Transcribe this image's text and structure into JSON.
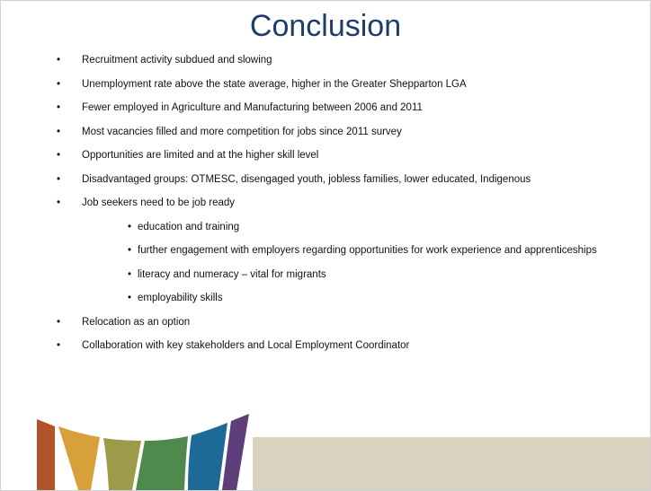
{
  "title": "Conclusion",
  "bullets": [
    "Recruitment activity subdued and slowing",
    "Unemployment rate above the state average, higher in the Greater Shepparton LGA",
    "Fewer employed in Agriculture and Manufacturing between 2006 and 2011",
    "Most vacancies filled and more competition for jobs since 2011 survey",
    "Opportunities are limited and at the higher skill level",
    "Disadvantaged groups: OTMESC, disengaged youth, jobless families, lower educated, Indigenous",
    "Job seekers need to be job ready",
    "Relocation as an option",
    "Collaboration with key stakeholders and Local Employment Coordinator"
  ],
  "sub_bullets": [
    "education and training",
    "further engagement with employers regarding opportunities for work experience and apprenticeships",
    "literacy and numeracy – vital for migrants",
    "employability skills"
  ]
}
